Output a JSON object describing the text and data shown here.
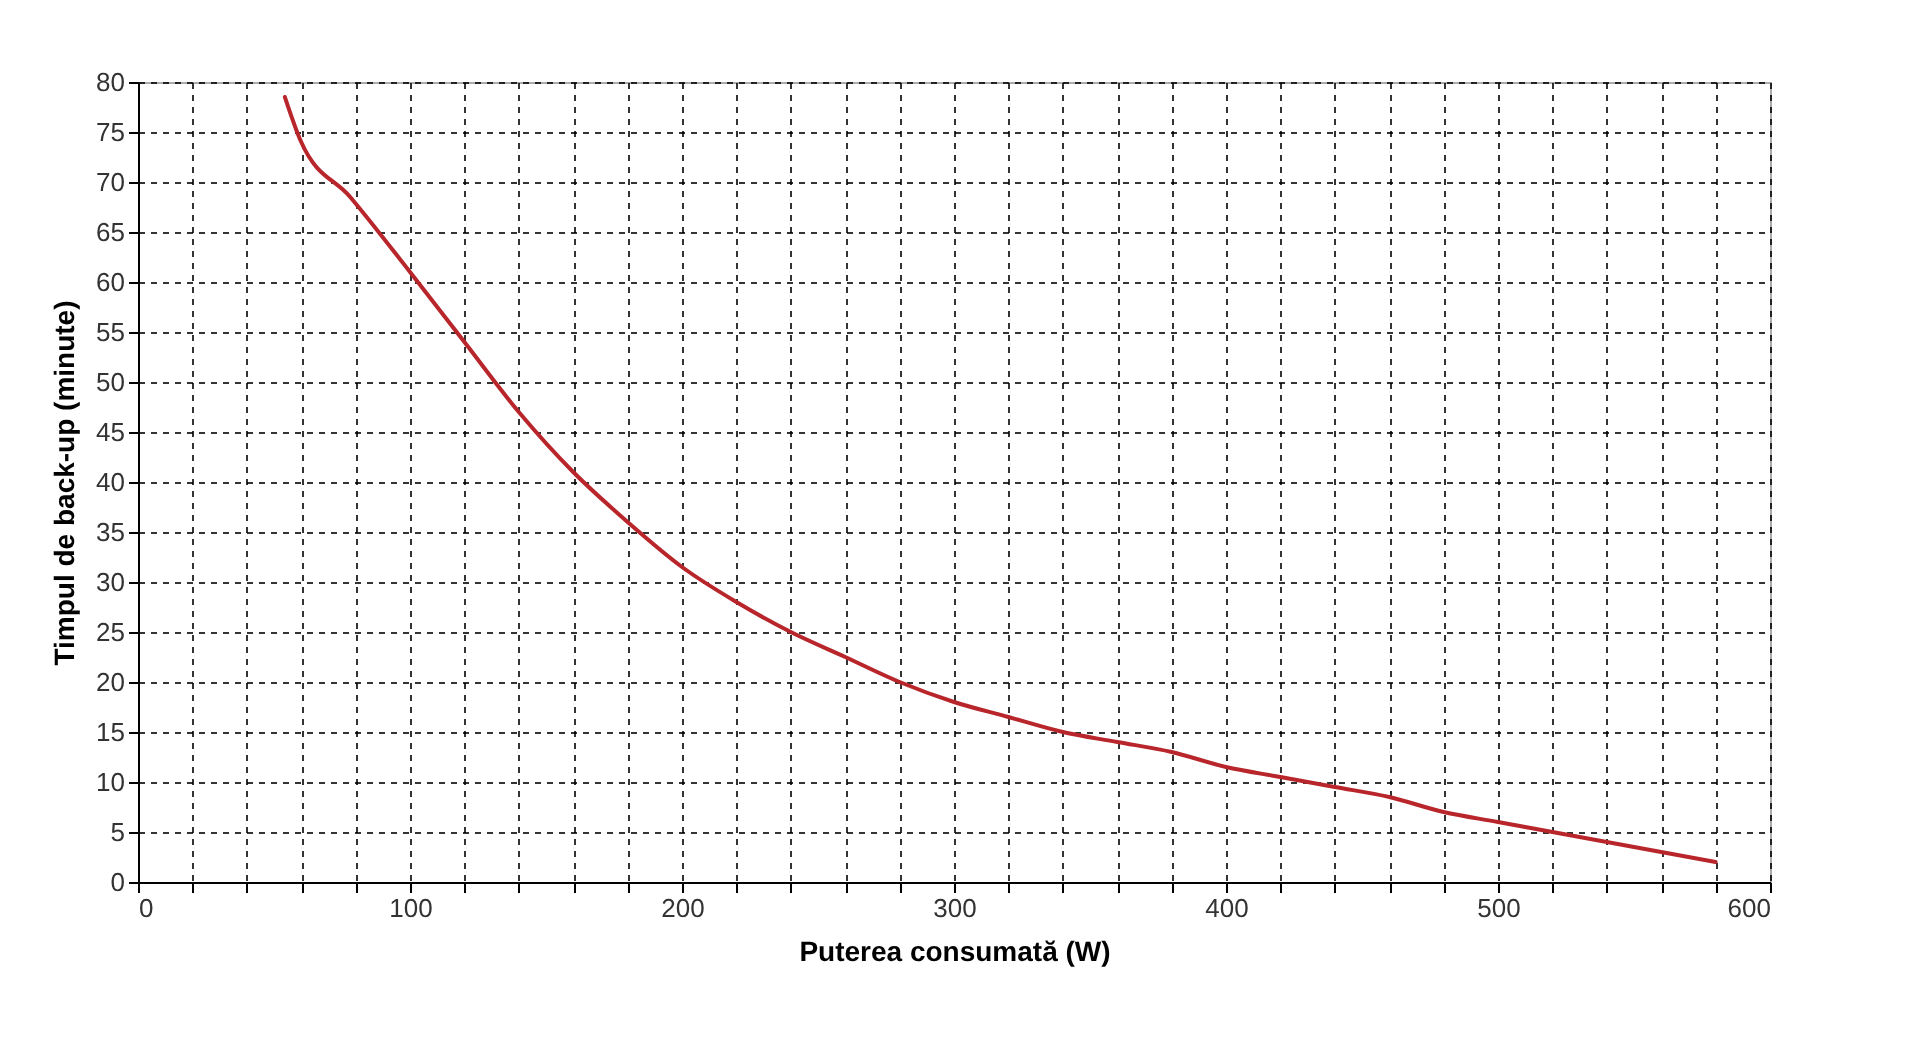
{
  "chart_data": {
    "type": "line",
    "xlabel": "Puterea consumată  (W)",
    "ylabel": "Timpul de back-up  (minute)",
    "x": [
      54,
      60,
      78,
      100,
      120,
      140,
      160,
      180,
      200,
      220,
      240,
      260,
      280,
      300,
      320,
      340,
      360,
      380,
      400,
      420,
      440,
      460,
      480,
      500,
      520,
      540,
      560,
      580
    ],
    "series": [
      {
        "color": "#b8262b",
        "values": [
          78.5,
          74,
          68.5,
          61,
          54,
          47,
          41,
          36,
          31.5,
          28,
          25,
          22.5,
          20,
          18,
          16.5,
          15,
          14,
          13,
          11.5,
          10.5,
          9.5,
          8.5,
          7,
          6,
          5,
          4,
          3,
          2
        ]
      }
    ],
    "xlim": [
      0,
      600
    ],
    "xticks": [
      0,
      {
        "value": 20,
        "label": null
      },
      {
        "value": 40,
        "label": null
      },
      {
        "value": 60,
        "label": null
      },
      {
        "value": 80,
        "label": null
      },
      100,
      {
        "value": 120,
        "label": null
      },
      {
        "value": 140,
        "label": null
      },
      {
        "value": 160,
        "label": null
      },
      {
        "value": 180,
        "label": null
      },
      200,
      {
        "value": 220,
        "label": null
      },
      {
        "value": 240,
        "label": null
      },
      {
        "value": 260,
        "label": null
      },
      {
        "value": 280,
        "label": null
      },
      300,
      {
        "value": 320,
        "label": null
      },
      {
        "value": 340,
        "label": null
      },
      {
        "value": 360,
        "label": null
      },
      {
        "value": 380,
        "label": null
      },
      400,
      {
        "value": 420,
        "label": null
      },
      {
        "value": 440,
        "label": null
      },
      {
        "value": 460,
        "label": null
      },
      {
        "value": 480,
        "label": null
      },
      500,
      {
        "value": 520,
        "label": null
      },
      {
        "value": 540,
        "label": null
      },
      {
        "value": 560,
        "label": null
      },
      {
        "value": 580,
        "label": null
      },
      600
    ],
    "ylim": [
      0,
      80
    ],
    "yticks": [
      0,
      5,
      10,
      15,
      20,
      25,
      30,
      35,
      40,
      45,
      50,
      55,
      60,
      65,
      70,
      75,
      80
    ],
    "grid": true,
    "marker": "none",
    "line_style": "solid"
  }
}
